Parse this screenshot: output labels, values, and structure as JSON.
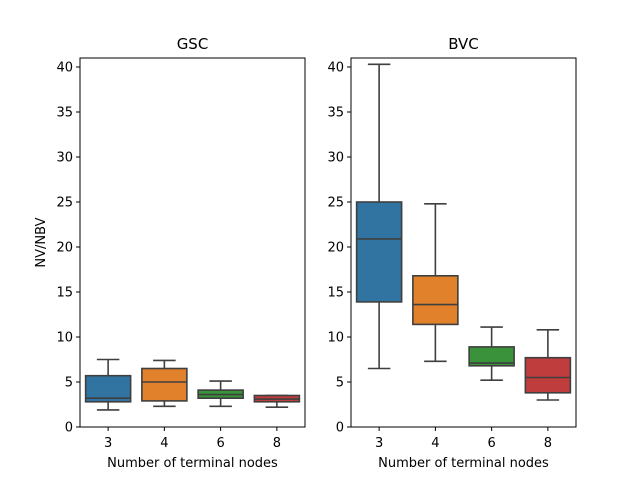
{
  "chart_data": [
    {
      "type": "boxplot",
      "title": "GSC",
      "xlabel": "Number of terminal nodes",
      "ylabel": "NV/NBV",
      "ylim": [
        0,
        41
      ],
      "yticks": [
        0,
        5,
        10,
        15,
        20,
        25,
        30,
        35,
        40
      ],
      "grid": false,
      "categories": [
        "3",
        "4",
        "6",
        "8"
      ],
      "colors": [
        "#3274a1",
        "#e1812c",
        "#3a923a",
        "#c03d3e"
      ],
      "boxes": [
        {
          "category": "3",
          "whisker_low": 1.9,
          "q1": 2.8,
          "median": 3.2,
          "q3": 5.7,
          "whisker_high": 7.5
        },
        {
          "category": "4",
          "whisker_low": 2.3,
          "q1": 2.9,
          "median": 5.0,
          "q3": 6.5,
          "whisker_high": 7.4
        },
        {
          "category": "6",
          "whisker_low": 2.3,
          "q1": 3.2,
          "median": 3.6,
          "q3": 4.1,
          "whisker_high": 5.1
        },
        {
          "category": "8",
          "whisker_low": 2.2,
          "q1": 2.8,
          "median": 3.1,
          "q3": 3.5,
          "whisker_high": 3.5
        }
      ]
    },
    {
      "type": "boxplot",
      "title": "BVC",
      "xlabel": "Number of terminal nodes",
      "ylabel": "",
      "ylim": [
        0,
        41
      ],
      "yticks": [
        0,
        5,
        10,
        15,
        20,
        25,
        30,
        35,
        40
      ],
      "grid": false,
      "categories": [
        "3",
        "4",
        "6",
        "8"
      ],
      "colors": [
        "#3274a1",
        "#e1812c",
        "#3a923a",
        "#c03d3e"
      ],
      "boxes": [
        {
          "category": "3",
          "whisker_low": 6.5,
          "q1": 13.9,
          "median": 20.9,
          "q3": 25.0,
          "whisker_high": 40.3
        },
        {
          "category": "4",
          "whisker_low": 7.3,
          "q1": 11.4,
          "median": 13.6,
          "q3": 16.8,
          "whisker_high": 24.8
        },
        {
          "category": "6",
          "whisker_low": 5.2,
          "q1": 6.8,
          "median": 7.1,
          "q3": 8.9,
          "whisker_high": 11.1
        },
        {
          "category": "8",
          "whisker_low": 3.0,
          "q1": 3.8,
          "median": 5.5,
          "q3": 7.7,
          "whisker_high": 10.8
        }
      ]
    }
  ]
}
